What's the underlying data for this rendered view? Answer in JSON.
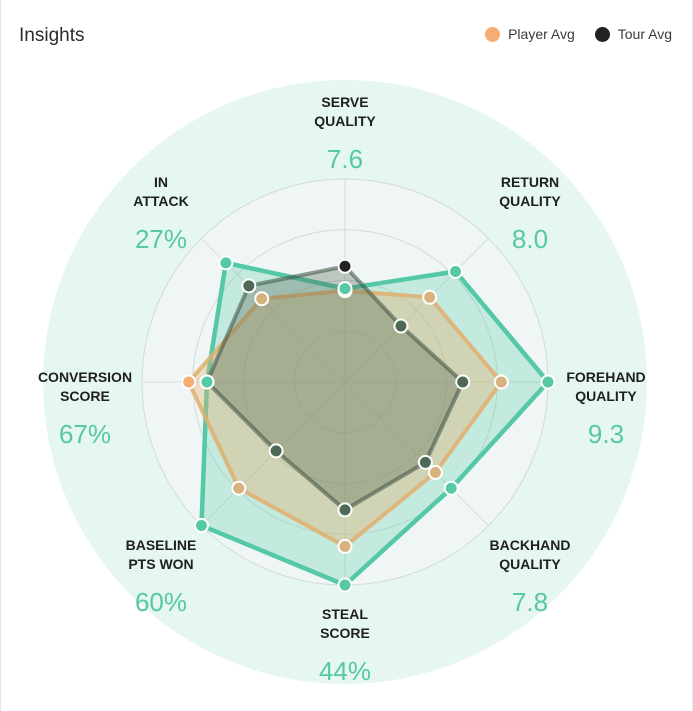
{
  "header": {
    "title": "Insights"
  },
  "colors": {
    "player": "#f5ad73",
    "tour": "#222222",
    "current": "#55c9a6",
    "outer": "#e6f6f1",
    "grid": "#d3dbd9",
    "value": "#55c9a6"
  },
  "legend": [
    {
      "label": "Player Avg",
      "color": "#f5ad73"
    },
    {
      "label": "Tour Avg",
      "color": "#222222"
    }
  ],
  "chart_data": {
    "type": "radar",
    "axis_range": [
      0,
      1
    ],
    "axes": [
      {
        "label_lines": [
          "SERVE",
          "QUALITY"
        ],
        "value_text": "7.6"
      },
      {
        "label_lines": [
          "RETURN",
          "QUALITY"
        ],
        "value_text": "8.0"
      },
      {
        "label_lines": [
          "FOREHAND",
          "QUALITY"
        ],
        "value_text": "9.3"
      },
      {
        "label_lines": [
          "BACKHAND",
          "QUALITY"
        ],
        "value_text": "7.8"
      },
      {
        "label_lines": [
          "STEAL",
          "SCORE"
        ],
        "value_text": "44%"
      },
      {
        "label_lines": [
          "BASELINE",
          "PTS WON"
        ],
        "value_text": "60%"
      },
      {
        "label_lines": [
          "CONVERSION",
          "SCORE"
        ],
        "value_text": "67%"
      },
      {
        "label_lines": [
          "IN",
          "ATTACK"
        ],
        "value_text": "27%"
      }
    ],
    "series": [
      {
        "name": "Player Avg",
        "values": [
          0.45,
          0.59,
          0.77,
          0.63,
          0.81,
          0.74,
          0.77,
          0.58
        ]
      },
      {
        "name": "Tour Avg",
        "values": [
          0.57,
          0.39,
          0.58,
          0.56,
          0.63,
          0.48,
          0.68,
          0.67
        ]
      },
      {
        "values": [
          0.46,
          0.77,
          1.0,
          0.74,
          1.0,
          1.0,
          0.68,
          0.83
        ]
      }
    ]
  }
}
